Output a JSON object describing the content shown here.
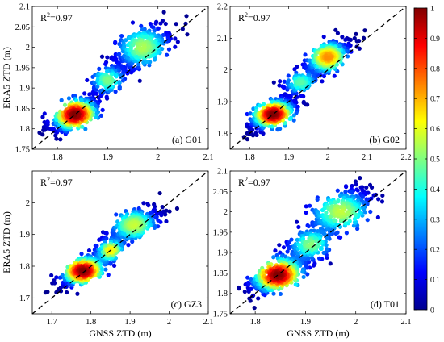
{
  "chart_data": [
    {
      "type": "scatter",
      "panel_label": "(a) G01",
      "xlabel": "",
      "ylabel": "ERA5 ZTD (m)",
      "annotation": {
        "prefix": "R",
        "sup": "2",
        "suffix": "=0.97"
      },
      "xlim": [
        1.75,
        2.1
      ],
      "ylim": [
        1.75,
        2.1
      ],
      "xticks": [
        1.8,
        1.9,
        2,
        2.1
      ],
      "xtick_labels": [
        "1.8",
        "1.9",
        "2",
        "2.1"
      ],
      "yticks": [
        1.75,
        1.8,
        1.85,
        1.9,
        1.95,
        2,
        2.05,
        2.1
      ],
      "ytick_labels": [
        "1.75",
        "1.8",
        "1.85",
        "1.9",
        "1.95",
        "2",
        "2.05",
        "2.1"
      ],
      "reference_line": "y=x",
      "clusters": [
        {
          "x": 1.835,
          "y": 1.835,
          "sx": 0.025,
          "sy": 0.022,
          "n": 430,
          "rho": 0.6
        },
        {
          "x": 1.97,
          "y": 2.0,
          "sx": 0.03,
          "sy": 0.03,
          "n": 330,
          "rho": 0.6
        },
        {
          "x": 1.9,
          "y": 1.92,
          "sx": 0.02,
          "sy": 0.02,
          "n": 130,
          "rho": 0.5
        }
      ],
      "density_peak": [
        1.835,
        1.835
      ]
    },
    {
      "type": "scatter",
      "panel_label": "(b) G02",
      "xlabel": "",
      "ylabel": "",
      "annotation": {
        "prefix": "R",
        "sup": "2",
        "suffix": "=0.97"
      },
      "xlim": [
        1.75,
        2.2
      ],
      "ylim": [
        1.75,
        2.2
      ],
      "xticks": [
        1.8,
        1.9,
        2,
        2.1,
        2.2
      ],
      "xtick_labels": [
        "1.8",
        "1.9",
        "2",
        "2.1",
        "2.2"
      ],
      "yticks": [
        1.8,
        1.9,
        2,
        2.1,
        2.2
      ],
      "ytick_labels": [
        "1.8",
        "1.9",
        "2",
        "2.1",
        "2.2"
      ],
      "reference_line": "y=x",
      "clusters": [
        {
          "x": 1.86,
          "y": 1.86,
          "sx": 0.03,
          "sy": 0.025,
          "n": 430,
          "rho": 0.6
        },
        {
          "x": 2.0,
          "y": 2.04,
          "sx": 0.03,
          "sy": 0.028,
          "n": 330,
          "rho": 0.6
        },
        {
          "x": 1.93,
          "y": 1.96,
          "sx": 0.025,
          "sy": 0.022,
          "n": 120,
          "rho": 0.5
        }
      ],
      "density_peak": [
        1.86,
        1.86
      ]
    },
    {
      "type": "scatter",
      "panel_label": "(c) GZ3",
      "xlabel": "GNSS ZTD (m)",
      "ylabel": "ERA5 ZTD (m)",
      "annotation": {
        "prefix": "R",
        "sup": "2",
        "suffix": "=0.97"
      },
      "xlim": [
        1.65,
        2.1
      ],
      "ylim": [
        1.65,
        2.1
      ],
      "xticks": [
        1.7,
        1.8,
        1.9,
        2,
        2.1
      ],
      "xtick_labels": [
        "1.7",
        "1.8",
        "1.9",
        "2",
        "2.1"
      ],
      "yticks": [
        1.7,
        1.8,
        1.9,
        2
      ],
      "ytick_labels": [
        "1.7",
        "1.8",
        "1.9",
        "2"
      ],
      "reference_line": "y=x",
      "clusters": [
        {
          "x": 1.78,
          "y": 1.785,
          "sx": 0.03,
          "sy": 0.025,
          "n": 430,
          "rho": 0.6
        },
        {
          "x": 1.91,
          "y": 1.93,
          "sx": 0.035,
          "sy": 0.03,
          "n": 300,
          "rho": 0.65
        },
        {
          "x": 1.85,
          "y": 1.85,
          "sx": 0.02,
          "sy": 0.02,
          "n": 130,
          "rho": 0.5
        }
      ],
      "density_peak": [
        1.78,
        1.785
      ]
    },
    {
      "type": "scatter",
      "panel_label": "(d) T01",
      "xlabel": "GNSS ZTD (m)",
      "ylabel": "",
      "annotation": {
        "prefix": "R",
        "sup": "2",
        "suffix": "=0.97"
      },
      "xlim": [
        1.75,
        2.1
      ],
      "ylim": [
        1.75,
        2.1
      ],
      "xticks": [
        1.8,
        1.9,
        2,
        2.1
      ],
      "xtick_labels": [
        "1.8",
        "1.9",
        "2",
        "2.1"
      ],
      "yticks": [
        1.75,
        1.8,
        1.85,
        1.9,
        1.95,
        2,
        2.05,
        2.1
      ],
      "ytick_labels": [
        "1.75",
        "1.8",
        "1.85",
        "1.9",
        "1.95",
        "2",
        "2.05",
        "2.1"
      ],
      "reference_line": "y=x",
      "clusters": [
        {
          "x": 1.845,
          "y": 1.845,
          "sx": 0.028,
          "sy": 0.024,
          "n": 430,
          "rho": 0.6
        },
        {
          "x": 1.97,
          "y": 2.0,
          "sx": 0.035,
          "sy": 0.03,
          "n": 330,
          "rho": 0.6
        },
        {
          "x": 1.91,
          "y": 1.92,
          "sx": 0.025,
          "sy": 0.022,
          "n": 150,
          "rho": 0.5
        }
      ],
      "density_peak": [
        1.845,
        1.845
      ]
    }
  ],
  "colorbar": {
    "colormap": "jet",
    "range": [
      0,
      1
    ],
    "ticks": [
      0,
      0.1,
      0.2,
      0.3,
      0.4,
      0.5,
      0.6,
      0.7,
      0.8,
      0.9,
      1
    ],
    "tick_labels": [
      "0",
      "0.1",
      "0.2",
      "0.3",
      "0.4",
      "0.5",
      "0.6",
      "0.7",
      "0.8",
      "0.9",
      "1"
    ]
  }
}
